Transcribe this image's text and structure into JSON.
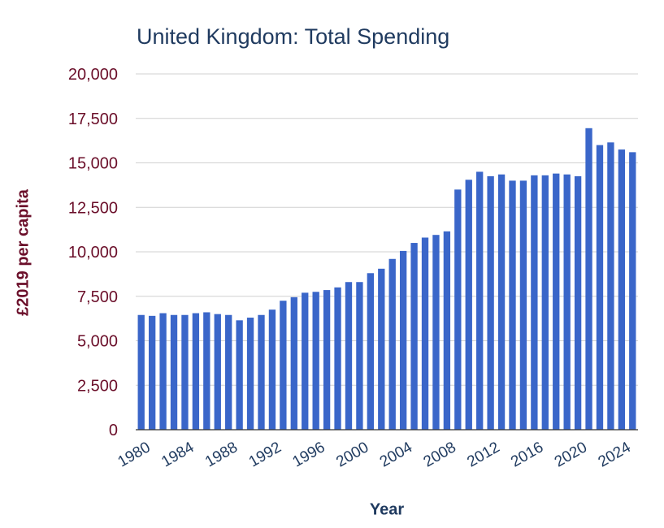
{
  "chart_data": {
    "type": "bar",
    "title": "United Kingdom: Total Spending",
    "xlabel": "Year",
    "ylabel": "£2019 per capita",
    "ylim": [
      0,
      20000
    ],
    "yticks": [
      "0",
      "2,500",
      "5,000",
      "7,500",
      "10,000",
      "12,500",
      "15,000",
      "17,500",
      "20,000"
    ],
    "xtick_labels": [
      "1980",
      "1984",
      "1988",
      "1992",
      "1996",
      "2000",
      "2004",
      "2008",
      "2012",
      "2016",
      "2020",
      "2024"
    ],
    "grid": "horizontal",
    "bar_color": "#3a66c9",
    "categories": [
      "1980",
      "1981",
      "1982",
      "1983",
      "1984",
      "1985",
      "1986",
      "1987",
      "1988",
      "1989",
      "1990",
      "1991",
      "1992",
      "1993",
      "1994",
      "1995",
      "1996",
      "1997",
      "1998",
      "1999",
      "2000",
      "2001",
      "2002",
      "2003",
      "2004",
      "2005",
      "2006",
      "2007",
      "2008",
      "2009",
      "2010",
      "2011",
      "2012",
      "2013",
      "2014",
      "2015",
      "2016",
      "2017",
      "2018",
      "2019",
      "2020",
      "2021",
      "2022",
      "2023",
      "2024",
      "2025"
    ],
    "values": [
      6450,
      6400,
      6550,
      6450,
      6450,
      6550,
      6600,
      6500,
      6450,
      6150,
      6300,
      6450,
      6750,
      7250,
      7450,
      7700,
      7750,
      7850,
      8000,
      8300,
      8300,
      8800,
      9050,
      9600,
      10050,
      10500,
      10800,
      10950,
      11150,
      13500,
      14050,
      14500,
      14250,
      14350,
      14000,
      14000,
      14300,
      14300,
      14400,
      14350,
      14250,
      16950,
      16000,
      16150,
      15750,
      15600
    ]
  }
}
